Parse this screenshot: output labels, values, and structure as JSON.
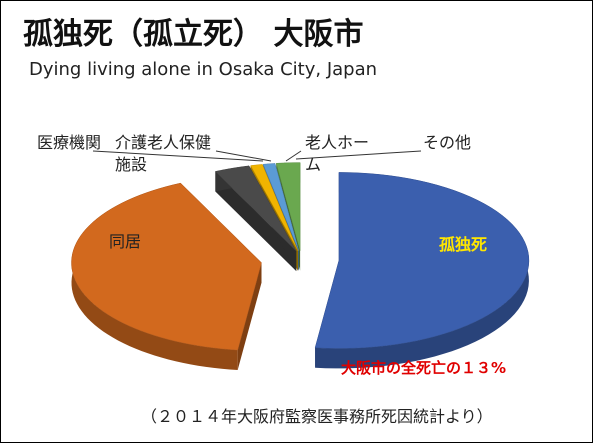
{
  "chart_data": {
    "type": "pie3d",
    "title": "孤独死（孤立死） 大阪市",
    "subtitle": "Dying living alone in Osaka City, Japan",
    "categories": [
      "孤独死",
      "同居",
      "医療機関",
      "介護老人保健施設",
      "老人ホーム",
      "その他"
    ],
    "values": [
      52,
      41,
      3,
      1,
      1,
      2
    ],
    "colors": [
      "#3b5fae",
      "#d2691e",
      "#4a4a4a",
      "#f0b400",
      "#5b9bd5",
      "#6aa84f"
    ],
    "annotation": "大阪市の全死亡の１３%",
    "source": "（２０１４年大阪府監察医事務所死因統計より）"
  }
}
